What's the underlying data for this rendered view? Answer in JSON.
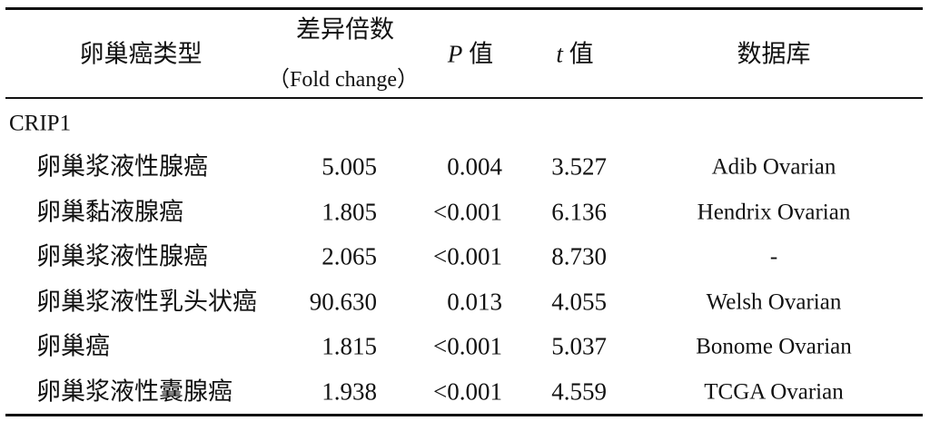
{
  "table": {
    "header": {
      "type": "卵巢癌类型",
      "fold": [
        "差异倍数",
        "（Fold change）"
      ],
      "p": [
        "P",
        "值"
      ],
      "t": [
        "t",
        "值"
      ],
      "db": "数据库"
    },
    "group": "CRIP1",
    "rows": [
      [
        "卵巢浆液性腺癌",
        "5.005",
        "0.004",
        "3.527",
        "Adib Ovarian"
      ],
      [
        "卵巢黏液腺癌",
        "1.805",
        "<0.001",
        "6.136",
        "Hendrix Ovarian"
      ],
      [
        "卵巢浆液性腺癌",
        "2.065",
        "<0.001",
        "8.730",
        "-"
      ],
      [
        "卵巢浆液性乳头状癌",
        "90.630",
        "0.013",
        "4.055",
        "Welsh Ovarian"
      ],
      [
        "卵巢癌",
        "1.815",
        "<0.001",
        "5.037",
        "Bonome Ovarian"
      ],
      [
        "卵巢浆液性囊腺癌",
        "1.938",
        "<0.001",
        "4.559",
        "TCGA Ovarian"
      ]
    ]
  }
}
